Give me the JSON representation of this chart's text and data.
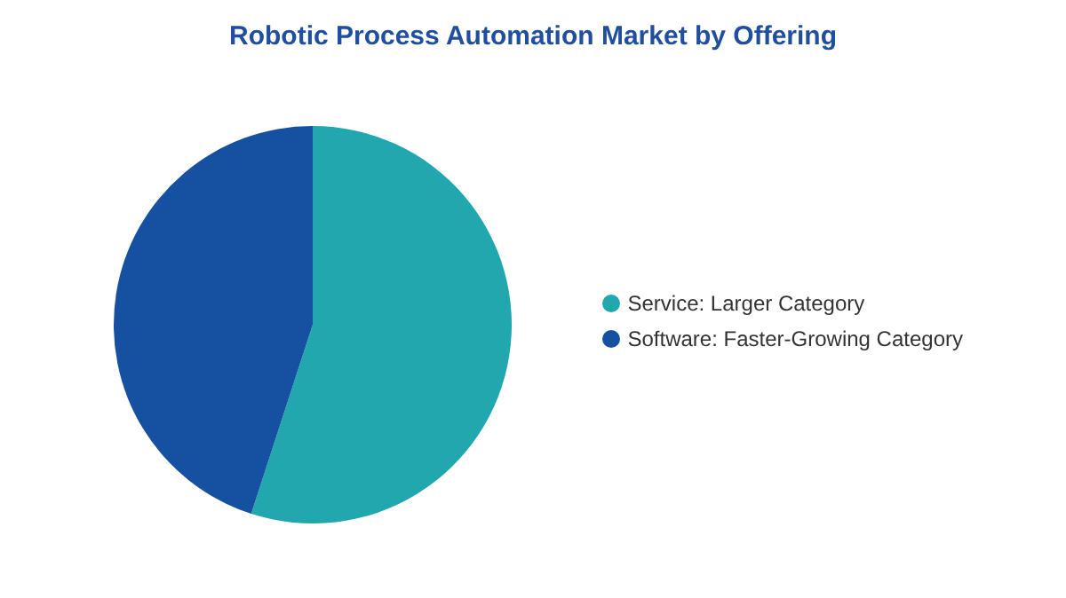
{
  "chart_data": {
    "type": "pie",
    "title": "Robotic Process Automation Market by Offering",
    "categories": [
      "Service:  Larger Category",
      "Software:  Faster-Growing Category"
    ],
    "values": [
      55,
      45
    ],
    "colors": [
      "#21a7ae",
      "#1651a1"
    ],
    "legend": "right"
  }
}
